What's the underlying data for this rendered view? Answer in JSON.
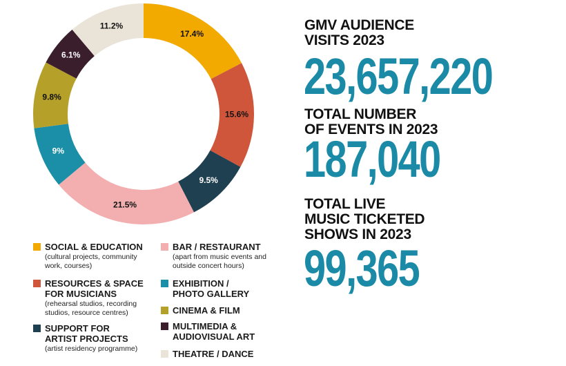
{
  "chart_data": {
    "type": "donut",
    "categories": [
      "SOCIAL & EDUCATION",
      "RESOURCES & SPACE\nFOR MUSICIANS",
      "SUPPORT FOR\nARTIST PROJECTS",
      "BAR / RESTAURANT",
      "EXHIBITION /\nPHOTO GALLERY",
      "CINEMA & FILM",
      "MULTIMEDIA &\nAUDIOVISUAL ART",
      "THEATRE / DANCE"
    ],
    "descriptions": [
      "(cultural projects, community\nwork, courses)",
      "(rehearsal studios, recording\nstudios, resource centres)",
      "(artist residency programme)",
      "(apart from music events and\noutside concert hours)",
      null,
      null,
      null,
      null
    ],
    "values": [
      17.4,
      15.6,
      9.5,
      21.5,
      9,
      9.8,
      6.1,
      11.2
    ],
    "value_labels": [
      "17.4%",
      "15.6%",
      "9.5%",
      "21.5%",
      "9%",
      "9.8%",
      "6.1%",
      "11.2%"
    ],
    "colors": [
      "#f2a900",
      "#cf553b",
      "#1f4050",
      "#f3afb0",
      "#1b8ea8",
      "#b5a12a",
      "#3b1e2c",
      "#e9e3d8"
    ]
  },
  "stats": [
    {
      "label": "GMV AUDIENCE\nVISITS 2023",
      "value": "23,657,220"
    },
    {
      "label": "TOTAL NUMBER\nOF EVENTS IN 2023",
      "value": "187,040"
    },
    {
      "label": "TOTAL LIVE\nMUSIC TICKETED\nSHOWS IN 2023",
      "value": "99,365"
    }
  ]
}
